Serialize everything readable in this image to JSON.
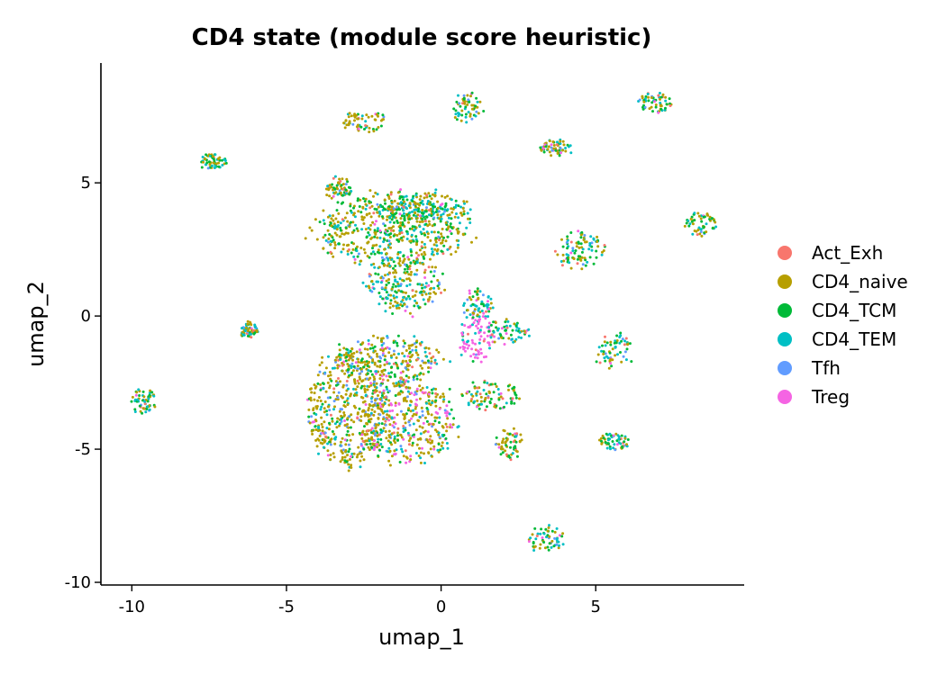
{
  "chart_data": {
    "type": "scatter",
    "title": "CD4 state (module score heuristic)",
    "xlabel": "umap_1",
    "ylabel": "umap_2",
    "xlim": [
      -11,
      9.8
    ],
    "ylim": [
      -10.1,
      9.5
    ],
    "x_ticks": [
      -10,
      -5,
      0,
      5
    ],
    "y_ticks": [
      -10,
      -5,
      0,
      5
    ],
    "x_tick_labels": [
      "-10",
      "-5",
      "0",
      "5"
    ],
    "y_tick_labels": [
      "-10",
      "-5",
      "0",
      "5"
    ],
    "grid": false,
    "legend_position": "right",
    "series": [
      {
        "name": "Act_Exh",
        "color": "#F8766D"
      },
      {
        "name": "CD4_naive",
        "color": "#B79F00"
      },
      {
        "name": "CD4_TCM",
        "color": "#00BA38"
      },
      {
        "name": "CD4_TEM",
        "color": "#00BFC4"
      },
      {
        "name": "Tfh",
        "color": "#619CFF"
      },
      {
        "name": "Treg",
        "color": "#F564E3"
      }
    ],
    "clusters": [
      {
        "cx": -1.6,
        "cy": 3.2,
        "rx": 2.6,
        "ry": 1.4,
        "weights": [
          0.05,
          0.45,
          0.25,
          0.2,
          0.03,
          0.02
        ]
      },
      {
        "cx": -0.5,
        "cy": 4.0,
        "rx": 1.6,
        "ry": 0.7,
        "weights": [
          0.05,
          0.4,
          0.25,
          0.25,
          0.03,
          0.02
        ]
      },
      {
        "cx": -3.3,
        "cy": 4.8,
        "rx": 0.45,
        "ry": 0.45,
        "weights": [
          0.05,
          0.4,
          0.3,
          0.2,
          0.03,
          0.02
        ]
      },
      {
        "cx": -3.0,
        "cy": -3.5,
        "rx": 1.4,
        "ry": 2.3,
        "weights": [
          0.05,
          0.55,
          0.15,
          0.1,
          0.1,
          0.05
        ]
      },
      {
        "cx": -1.0,
        "cy": -4.0,
        "rx": 1.6,
        "ry": 1.6,
        "weights": [
          0.05,
          0.5,
          0.1,
          0.1,
          0.1,
          0.15
        ]
      },
      {
        "cx": -1.7,
        "cy": -1.7,
        "rx": 1.8,
        "ry": 1.0,
        "weights": [
          0.05,
          0.5,
          0.15,
          0.15,
          0.08,
          0.07
        ]
      },
      {
        "cx": -1.2,
        "cy": 1.2,
        "rx": 1.3,
        "ry": 1.1,
        "weights": [
          0.05,
          0.35,
          0.25,
          0.25,
          0.05,
          0.05
        ]
      },
      {
        "cx": 1.2,
        "cy": -0.8,
        "rx": 0.6,
        "ry": 1.0,
        "weights": [
          0.05,
          0.05,
          0.05,
          0.1,
          0.05,
          0.7
        ]
      },
      {
        "cx": 1.2,
        "cy": 0.4,
        "rx": 0.5,
        "ry": 0.6,
        "weights": [
          0.05,
          0.15,
          0.15,
          0.5,
          0.05,
          0.1
        ]
      },
      {
        "cx": 2.2,
        "cy": -0.6,
        "rx": 0.8,
        "ry": 0.5,
        "weights": [
          0.05,
          0.15,
          0.15,
          0.55,
          0.05,
          0.05
        ]
      },
      {
        "cx": 1.6,
        "cy": -3.0,
        "rx": 1.0,
        "ry": 0.6,
        "weights": [
          0.1,
          0.4,
          0.3,
          0.1,
          0.05,
          0.05
        ]
      },
      {
        "cx": 2.2,
        "cy": -4.8,
        "rx": 0.5,
        "ry": 0.6,
        "weights": [
          0.1,
          0.45,
          0.3,
          0.05,
          0.05,
          0.05
        ]
      },
      {
        "cx": 4.5,
        "cy": 2.5,
        "rx": 0.9,
        "ry": 0.7,
        "weights": [
          0.05,
          0.35,
          0.25,
          0.25,
          0.05,
          0.05
        ]
      },
      {
        "cx": 5.6,
        "cy": -1.3,
        "rx": 0.6,
        "ry": 0.7,
        "weights": [
          0.05,
          0.25,
          0.2,
          0.4,
          0.05,
          0.05
        ]
      },
      {
        "cx": 5.6,
        "cy": -4.7,
        "rx": 0.5,
        "ry": 0.35,
        "weights": [
          0.05,
          0.3,
          0.2,
          0.35,
          0.05,
          0.05
        ]
      },
      {
        "cx": 3.4,
        "cy": -8.4,
        "rx": 0.6,
        "ry": 0.55,
        "weights": [
          0.05,
          0.3,
          0.3,
          0.25,
          0.05,
          0.05
        ]
      },
      {
        "cx": 8.4,
        "cy": 3.5,
        "rx": 0.55,
        "ry": 0.5,
        "weights": [
          0.05,
          0.4,
          0.3,
          0.15,
          0.05,
          0.05
        ]
      },
      {
        "cx": 6.9,
        "cy": 8.0,
        "rx": 0.6,
        "ry": 0.4,
        "weights": [
          0.05,
          0.4,
          0.25,
          0.2,
          0.05,
          0.05
        ]
      },
      {
        "cx": 0.9,
        "cy": 7.8,
        "rx": 0.5,
        "ry": 0.6,
        "weights": [
          0.05,
          0.45,
          0.2,
          0.2,
          0.05,
          0.05
        ]
      },
      {
        "cx": -2.5,
        "cy": 7.3,
        "rx": 0.75,
        "ry": 0.4,
        "weights": [
          0.05,
          0.45,
          0.25,
          0.15,
          0.05,
          0.05
        ]
      },
      {
        "cx": 3.7,
        "cy": 6.3,
        "rx": 0.5,
        "ry": 0.35,
        "weights": [
          0.05,
          0.4,
          0.25,
          0.2,
          0.05,
          0.05
        ]
      },
      {
        "cx": -7.4,
        "cy": 5.8,
        "rx": 0.45,
        "ry": 0.3,
        "weights": [
          0.05,
          0.35,
          0.3,
          0.2,
          0.05,
          0.05
        ]
      },
      {
        "cx": -6.2,
        "cy": -0.6,
        "rx": 0.3,
        "ry": 0.35,
        "weights": [
          0.1,
          0.35,
          0.2,
          0.25,
          0.05,
          0.05
        ]
      },
      {
        "cx": -9.6,
        "cy": -3.2,
        "rx": 0.45,
        "ry": 0.45,
        "weights": [
          0.05,
          0.35,
          0.25,
          0.25,
          0.05,
          0.05
        ]
      }
    ]
  }
}
